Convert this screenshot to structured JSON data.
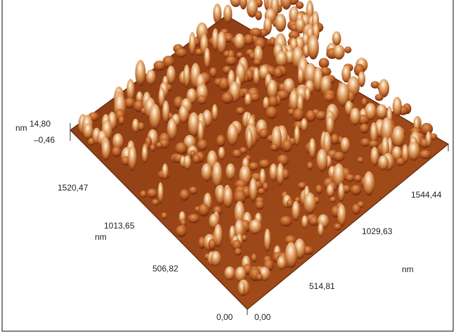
{
  "z_axis": {
    "unit": "nm",
    "labels": [
      "14,80",
      "–0,46"
    ]
  },
  "y_axis": {
    "unit": "nm",
    "labels": [
      "0,00",
      "506,82",
      "1013,65",
      "1520,47"
    ]
  },
  "x_axis": {
    "unit": "nm",
    "labels": [
      "0,00",
      "514,81",
      "1029,63",
      "1544,44"
    ]
  }
}
